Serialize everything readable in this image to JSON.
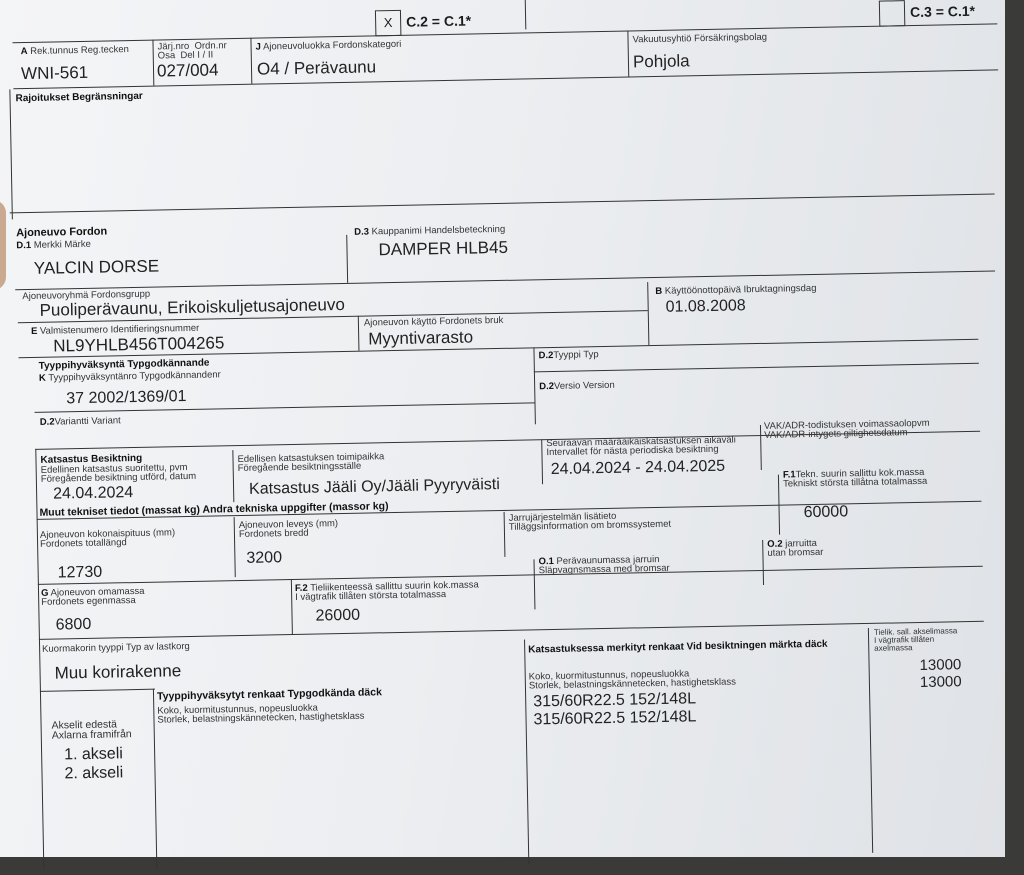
{
  "top": {
    "c2_checked": "X",
    "c2_label": "C.2 = C.1*",
    "c3_checked": "",
    "c3_label": "C.3 = C.1*"
  },
  "row_a": {
    "reg_label_code": "A",
    "reg_label": "Rek.tunnus  Reg.tecken",
    "reg_value": "WNI-561",
    "ord_label": "Järj.nro  Ordn.nr\nOsa  Del I / II",
    "ord_value": "027/004",
    "class_label_code": "J",
    "class_label": "Ajoneuvoluokka  Fordonskategori",
    "class_value": "O4 / Perävaunu",
    "insurer_label": "Vakuutusyhtiö  Försäkringsbolag",
    "insurer_value": "Pohjola"
  },
  "restrictions": {
    "label": "Rajoitukset  Begränsningar"
  },
  "vehicle": {
    "heading": "Ajoneuvo  Fordon",
    "make_code": "D.1",
    "make_label": "Merkki  Märke",
    "make_value": "YALCIN DORSE",
    "trade_code": "D.3",
    "trade_label": "Kauppanimi  Handelsbeteckning",
    "trade_value": "DAMPER HLB45",
    "group_label": "Ajoneuvoryhmä  Fordonsgrupp",
    "group_value": "Puoliperävaunu, Erikoiskuljetusajoneuvo",
    "vin_code": "E",
    "vin_label": "Valmistenumero  Identifieringsnummer",
    "vin_value": "NL9YHLB456T004265",
    "use_label": "Ajoneuvon käyttö  Fordonets bruk",
    "use_value": "Myyntivarasto",
    "date_code": "B",
    "date_label": "Käyttöönottopäivä  Ibruktagningsdag",
    "date_value": "01.08.2008"
  },
  "type_approval": {
    "heading": "Tyyppihyväksyntä  Typgodkännande",
    "k_code": "K",
    "k_label": "Tyyppihyväksyntänro  Typgodkännandenr",
    "k_value": "37 2002/1369/01",
    "type_code": "D.2",
    "type_label": "Tyyppi  Typ",
    "version_code": "D.2",
    "version_label": "Versio  Version",
    "variant_code": "D.2",
    "variant_label": "Variantti  Variant"
  },
  "inspection": {
    "heading": "Katsastus  Besiktning",
    "last_label": "Edellinen katsastus suoritettu, pvm\nFöregående besiktning utförd, datum",
    "last_value": "24.04.2024",
    "place_label": "Edellisen katsastuksen toimipaikka\nFöregående besiktningsställe",
    "place_value": "Katsastus Jääli Oy/Jääli Pyyryväisti",
    "next_label": "Seuraavan määräaikaiskatsastuksen aikaväli\nIntervallet för nästa periodiska besiktning",
    "next_value": "24.04.2024 - 24.04.2025",
    "adr_label": "VAK/ADR-todistuksen voimassaolopvm\nVAK/ADR-intygets giltighetsdatum"
  },
  "technical": {
    "heading": "Muut tekniset tiedot (massat kg)  Andra tekniska uppgifter (massor kg)",
    "length_label": "Ajoneuvon kokonaispituus (mm)\nFordonets totallängd",
    "length_value": "12730",
    "width_label": "Ajoneuvon leveys (mm)\nFordonets bredd",
    "width_value": "3200",
    "brake_label": "Jarrujärjestelmän lisätieto\nTilläggsinformation om bromssystemet",
    "f1_code": "F.1",
    "f1_label": "Tekn. suurin sallittu kok.massa\nTekniskt största tillåtna totalmassa",
    "f1_value": "60000",
    "g_code": "G",
    "g_label": "Ajoneuvon omamassa\nFordonets egenmassa",
    "g_value": "6800",
    "f2_code": "F.2",
    "f2_label": "Tieliikenteessä sallittu suurin kok.massa\nI vägtrafik tillåten största totalmassa",
    "f2_value": "26000",
    "o1_code": "O.1",
    "o1_label": "Perävaunumassa jarruin\nSläpvagnsmassa med bromsar",
    "o2_code": "O.2",
    "o2_label": "jarruitta\nutan bromsar"
  },
  "body": {
    "label": "Kuormakorin tyyppi  Typ av lastkorg",
    "value": "Muu korirakenne"
  },
  "tyres": {
    "axles_label": "Akselit edestä\nAxlarna framifrån",
    "axles": [
      "1. akseli",
      "2. akseli"
    ],
    "approved_heading": "Tyyppihyväksytyt renkaat  Typgodkända däck",
    "approved_label": "Koko, kuormitustunnus, nopeusluokka\nStorlek, belastningskännetecken, hastighetsklass",
    "marked_heading": "Katsastuksessa merkityt renkaat  Vid besiktningen märkta däck",
    "marked_label": "Koko, kuormitustunnus, nopeusluokka\nStorlek, belastningskännetecken, hastighetsklass",
    "marked_values": [
      "315/60R22.5 152/148L",
      "315/60R22.5 152/148L"
    ],
    "axle_mass_label": "Tielik. sall. akselimassa\nI vägtrafik tillåten\naxelmassa",
    "axle_mass_values": [
      "13000",
      "13000"
    ]
  }
}
